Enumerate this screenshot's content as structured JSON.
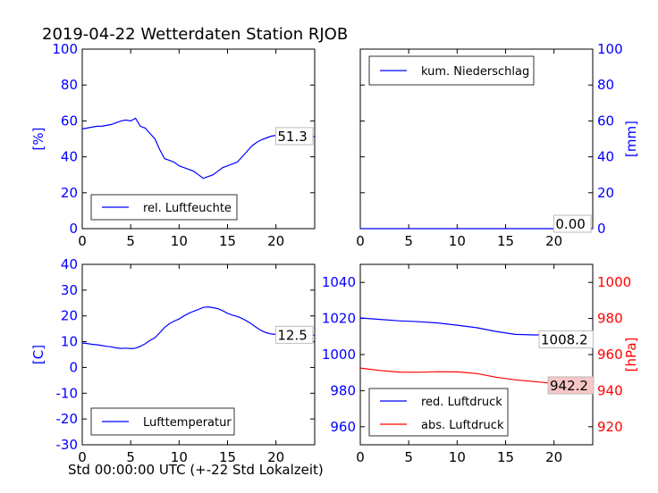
{
  "title": "2019-04-22 Wetterdaten Station RJOB",
  "xlabel": "Std 00:00:00 UTC (+-22 Std Lokalzeit)",
  "colors": {
    "primary": "#0000ff",
    "secondary": "#ff0000",
    "axis": "#000000"
  },
  "chart_data": [
    {
      "id": "humidity",
      "type": "line",
      "xlim": [
        0,
        24
      ],
      "ylim": [
        0,
        100
      ],
      "xticks": [
        0,
        5,
        10,
        15,
        20
      ],
      "yticks": [
        0,
        20,
        40,
        60,
        80,
        100
      ],
      "ylabel": "[%]",
      "ylabel_side": "left",
      "tick_color": "#0000ff",
      "legend": "top-left-bottom",
      "last_value_label": "51.3",
      "series": [
        {
          "name": "rel. Luftfeuchte",
          "color": "#0000ff",
          "x": [
            0,
            0.5,
            1,
            1.5,
            2,
            2.5,
            3,
            3.5,
            4,
            4.5,
            5,
            5.5,
            6,
            6.5,
            7,
            7.5,
            8,
            8.5,
            9,
            9.5,
            10,
            10.5,
            11,
            11.5,
            12,
            12.5,
            13,
            13.5,
            14,
            14.5,
            15,
            15.5,
            16,
            16.5,
            17,
            17.5,
            18,
            18.5,
            19,
            19.5,
            20,
            20.5,
            21,
            21.5,
            22,
            22.5,
            23,
            23.5,
            24
          ],
          "y": [
            55.5,
            56,
            56.5,
            57,
            57,
            57.5,
            58,
            59,
            60,
            60.5,
            60,
            61.5,
            57,
            56,
            53,
            50,
            44,
            39,
            38,
            37,
            35,
            34,
            33,
            32,
            30,
            28,
            29,
            30,
            32,
            34,
            35,
            36,
            37,
            40,
            43,
            46,
            48,
            49.5,
            50.5,
            51.5,
            52,
            53,
            53.5,
            53,
            52.5,
            53,
            52,
            51.5,
            51.3
          ]
        }
      ]
    },
    {
      "id": "precip",
      "type": "line",
      "xlim": [
        0,
        24
      ],
      "ylim": [
        0,
        100
      ],
      "xticks": [
        0,
        5,
        10,
        15,
        20
      ],
      "yticks": [
        0,
        20,
        40,
        60,
        80,
        100
      ],
      "ylabel": "[mm]",
      "ylabel_side": "right",
      "tick_color": "#0000ff",
      "legend": "top-left",
      "last_value_label": "0.00",
      "series": [
        {
          "name": "kum. Niederschlag",
          "color": "#0000ff",
          "x": [
            0,
            24
          ],
          "y": [
            0,
            0
          ]
        }
      ]
    },
    {
      "id": "temperature",
      "type": "line",
      "xlim": [
        0,
        24
      ],
      "ylim": [
        -30,
        40
      ],
      "xticks": [
        0,
        5,
        10,
        15,
        20
      ],
      "yticks": [
        -30,
        -20,
        -10,
        0,
        10,
        20,
        30,
        40
      ],
      "ylabel": "[C]",
      "ylabel_side": "left",
      "tick_color": "#0000ff",
      "legend": "bottom-left",
      "last_value_label": "12.5",
      "series": [
        {
          "name": "Lufttemperatur",
          "color": "#0000ff",
          "x": [
            0,
            0.5,
            1,
            1.5,
            2,
            2.5,
            3,
            3.5,
            4,
            4.5,
            5,
            5.5,
            6,
            6.5,
            7,
            7.5,
            8,
            8.5,
            9,
            9.5,
            10,
            10.5,
            11,
            11.5,
            12,
            12.5,
            13,
            13.5,
            14,
            14.5,
            15,
            15.5,
            16,
            16.5,
            17,
            17.5,
            18,
            18.5,
            19,
            19.5,
            20,
            20.5,
            21,
            21.5,
            22,
            22.5,
            23,
            23.5,
            24
          ],
          "y": [
            9.5,
            9.3,
            9,
            8.8,
            8.5,
            8.2,
            8,
            7.6,
            7.4,
            7.5,
            7.3,
            7.5,
            8.2,
            9.2,
            10.5,
            11.5,
            13.5,
            15.5,
            17,
            18,
            18.8,
            20,
            21,
            21.8,
            22.5,
            23.3,
            23.5,
            23.2,
            22.8,
            22,
            21,
            20.3,
            19.8,
            19,
            18,
            16.8,
            15.5,
            14.3,
            13.5,
            13,
            12.8,
            12.6,
            12.6,
            12.5,
            12.4,
            12.5,
            12.5,
            12.5,
            12.5
          ]
        }
      ]
    },
    {
      "id": "pressure",
      "type": "line",
      "xlim": [
        0,
        24
      ],
      "ylim_left": [
        950,
        1050
      ],
      "ylim_right": [
        910,
        1010
      ],
      "xticks": [
        0,
        5,
        10,
        15,
        20
      ],
      "yticks_left": [
        960,
        980,
        1000,
        1020,
        1040
      ],
      "yticks_right": [
        920,
        940,
        960,
        980,
        1000
      ],
      "ylabel": "[hPa]",
      "ylabel_side": "right",
      "tick_color_left": "#0000ff",
      "tick_color_right": "#ff0000",
      "legend": "bottom-left",
      "last_value_labels": [
        "1008.2",
        "942.2"
      ],
      "series": [
        {
          "name": "red. Luftdruck",
          "color": "#0000ff",
          "axis": "left",
          "x": [
            0,
            2,
            4,
            6,
            8,
            10,
            12,
            14,
            16,
            18,
            20,
            22,
            24
          ],
          "y": [
            1020.3,
            1019.5,
            1018.7,
            1018.2,
            1017.5,
            1016.3,
            1014.9,
            1012.8,
            1011.2,
            1010.9,
            1011.1,
            1010.3,
            1008.2
          ]
        },
        {
          "name": "abs. Luftdruck",
          "color": "#ff0000",
          "axis": "right",
          "x": [
            0,
            2,
            4,
            6,
            8,
            10,
            12,
            14,
            16,
            18,
            20,
            22,
            24
          ],
          "y": [
            952.5,
            951.2,
            950.3,
            950.2,
            950.5,
            950.4,
            949.5,
            947.5,
            946,
            945,
            944,
            943.2,
            942.2
          ]
        }
      ]
    }
  ]
}
